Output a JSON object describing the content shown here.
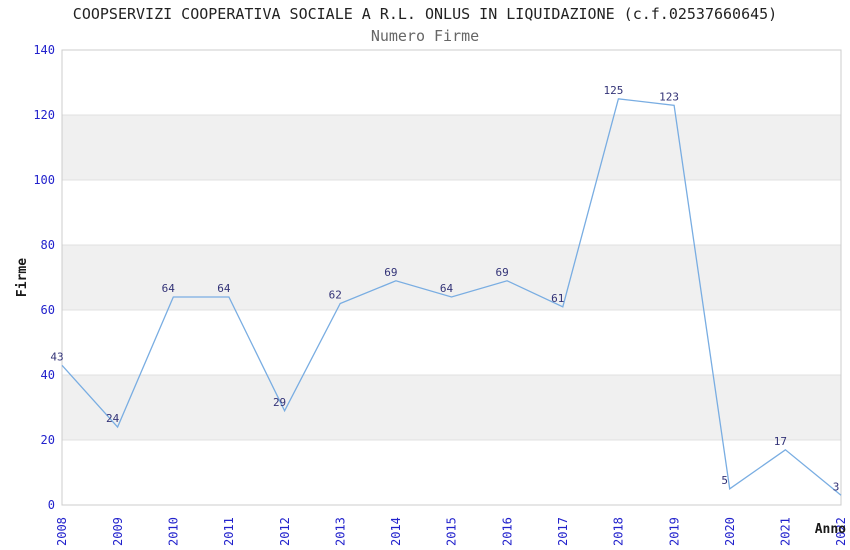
{
  "header": {
    "title": "COOPSERVIZI COOPERATIVA SOCIALE A R.L. ONLUS IN LIQUIDAZIONE (c.f.02537660645)",
    "subtitle": "Numero Firme"
  },
  "chart_data": {
    "type": "line",
    "title": "COOPSERVIZI COOPERATIVA SOCIALE A R.L. ONLUS IN LIQUIDAZIONE (c.f.02537660645)",
    "subtitle": "Numero Firme",
    "xlabel": "Anno",
    "ylabel": "Firme",
    "categories": [
      "2008",
      "2009",
      "2010",
      "2011",
      "2012",
      "2013",
      "2014",
      "2015",
      "2016",
      "2017",
      "2018",
      "2019",
      "2020",
      "2021",
      "2022"
    ],
    "values": [
      43,
      24,
      64,
      64,
      29,
      62,
      69,
      64,
      69,
      61,
      125,
      123,
      5,
      17,
      3
    ],
    "ylim": [
      0,
      140
    ],
    "yticks": [
      0,
      20,
      40,
      60,
      80,
      100,
      120,
      140
    ],
    "grid": true,
    "legend": "none",
    "band_style": "alternating horizontal gray bands between y gridlines",
    "colors": {
      "line": "#79ade2",
      "tick_labels": "#2222cc",
      "point_labels": "#333377",
      "band": "#f0f0f0",
      "gridline": "#e0e0e0",
      "plot_border": "#cccccc",
      "title": "#222222",
      "subtitle": "#666666",
      "axis_label": "#1a1a1a"
    }
  }
}
